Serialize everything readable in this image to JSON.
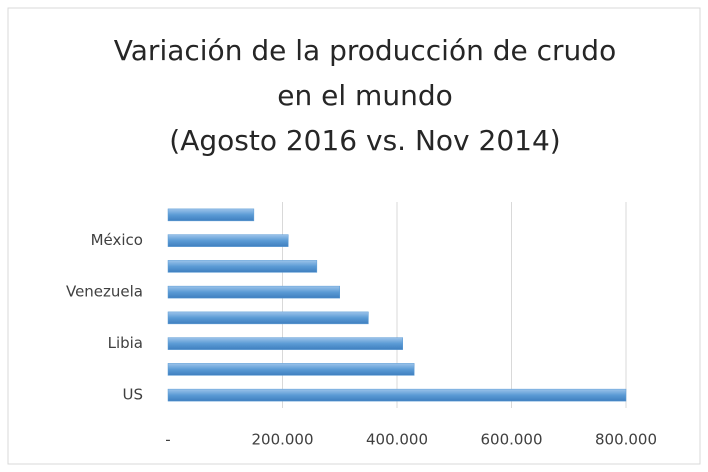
{
  "chart_data": {
    "type": "bar",
    "orientation": "horizontal",
    "title": [
      "Variación de la producción de crudo",
      "en el mundo",
      "(Agosto 2016 vs. Nov 2014)"
    ],
    "categories": [
      null,
      "México",
      null,
      "Venezuela",
      null,
      "Libia",
      null,
      "US"
    ],
    "values": [
      150000,
      210000,
      260000,
      300000,
      350000,
      410000,
      430000,
      800000
    ],
    "color": "#5b9bd5",
    "xlim": [
      0,
      800000
    ],
    "xticks": [
      {
        "value": 0,
        "label": "-"
      },
      {
        "value": 200000,
        "label": "200.000"
      },
      {
        "value": 400000,
        "label": "400.000"
      },
      {
        "value": 600000,
        "label": "600.000"
      },
      {
        "value": 800000,
        "label": "800.000"
      }
    ],
    "grid": true
  }
}
